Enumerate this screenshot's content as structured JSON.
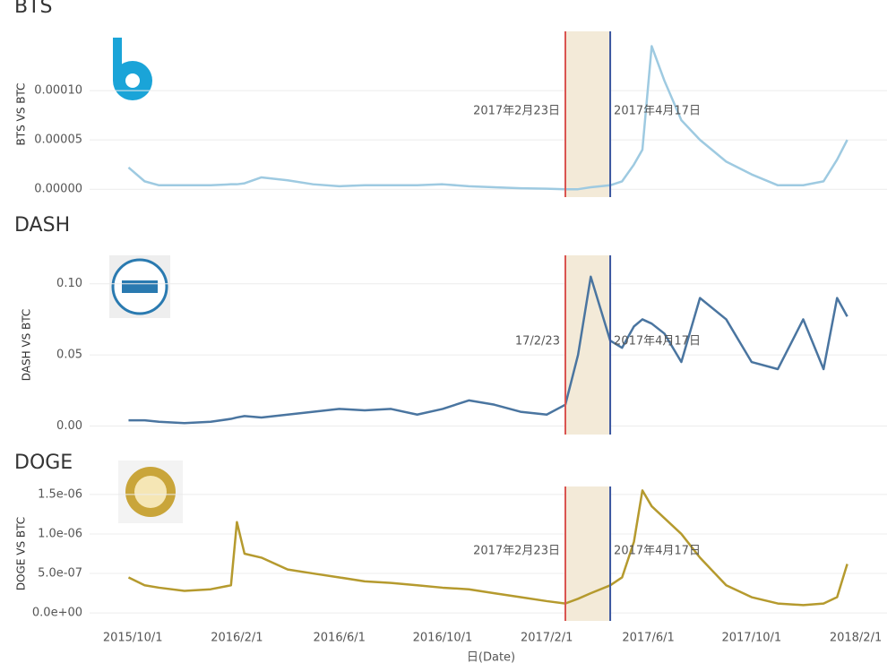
{
  "chart_data": [
    {
      "type": "line",
      "title": "BTS",
      "y_label": "BTS VS BTC",
      "x": [
        "2015/9/26",
        "2015/10/15",
        "2015/11/1",
        "2015/12/1",
        "2016/1/1",
        "2016/1/25",
        "2016/2/1",
        "2016/2/10",
        "2016/3/1",
        "2016/4/1",
        "2016/5/1",
        "2016/6/1",
        "2016/7/1",
        "2016/8/1",
        "2016/9/1",
        "2016/10/1",
        "2016/11/1",
        "2016/12/1",
        "2017/1/1",
        "2017/2/1",
        "2017/2/23",
        "2017/3/10",
        "2017/3/25",
        "2017/4/17",
        "2017/5/1",
        "2017/5/15",
        "2017/5/25",
        "2017/6/5",
        "2017/6/20",
        "2017/7/10",
        "2017/8/1",
        "2017/9/1",
        "2017/10/1",
        "2017/11/1",
        "2017/12/1",
        "2017/12/25",
        "2018/1/10",
        "2018/1/22"
      ],
      "series": [
        {
          "color": "#9ecae1",
          "values": [
            2.2e-05,
            8e-06,
            4e-06,
            4e-06,
            4e-06,
            5e-06,
            5e-06,
            6e-06,
            1.2e-05,
            9e-06,
            5e-06,
            3e-06,
            4e-06,
            4e-06,
            4e-06,
            5e-06,
            3e-06,
            2e-06,
            1e-06,
            5e-07,
            0,
            0,
            2e-06,
            4e-06,
            8e-06,
            2.5e-05,
            4e-05,
            0.000145,
            0.00011,
            7e-05,
            5e-05,
            2.8e-05,
            1.5e-05,
            4e-06,
            4e-06,
            8e-06,
            3e-05,
            5e-05
          ]
        }
      ],
      "xlim": [
        "2015/8/11",
        "2018/3/10"
      ],
      "ylim": [
        -8e-06,
        0.00016
      ],
      "yticks": [
        {
          "value": 0,
          "label": "0.00000"
        },
        {
          "value": 5e-05,
          "label": "0.00005"
        },
        {
          "value": 0.0001,
          "label": "0.00010"
        }
      ],
      "grid": true,
      "annotations": [
        {
          "x": "2017/2/23",
          "label": "2017年2月23日",
          "color": "#d9534f"
        },
        {
          "x": "2017/4/17",
          "label": "2017年4月17日",
          "color": "#3a56a0"
        }
      ],
      "shade_color": "#f3ead8"
    },
    {
      "type": "line",
      "title": "DASH",
      "y_label": "DASH VS BTC",
      "x": [
        "2015/9/26",
        "2015/10/15",
        "2015/11/1",
        "2015/12/1",
        "2016/1/1",
        "2016/1/25",
        "2016/2/1",
        "2016/2/10",
        "2016/3/1",
        "2016/4/1",
        "2016/5/1",
        "2016/6/1",
        "2016/7/1",
        "2016/8/1",
        "2016/9/1",
        "2016/10/1",
        "2016/11/1",
        "2016/12/1",
        "2017/1/1",
        "2017/2/1",
        "2017/2/23",
        "2017/3/10",
        "2017/3/25",
        "2017/4/17",
        "2017/5/1",
        "2017/5/15",
        "2017/5/25",
        "2017/6/5",
        "2017/6/20",
        "2017/7/10",
        "2017/8/1",
        "2017/9/1",
        "2017/10/1",
        "2017/11/1",
        "2017/12/1",
        "2017/12/25",
        "2018/1/10",
        "2018/1/22"
      ],
      "series": [
        {
          "color": "#4a75a0",
          "values": [
            0.004,
            0.004,
            0.003,
            0.002,
            0.003,
            0.005,
            0.006,
            0.007,
            0.006,
            0.008,
            0.01,
            0.012,
            0.011,
            0.012,
            0.008,
            0.012,
            0.018,
            0.015,
            0.01,
            0.008,
            0.015,
            0.05,
            0.105,
            0.06,
            0.055,
            0.07,
            0.075,
            0.072,
            0.065,
            0.045,
            0.09,
            0.075,
            0.045,
            0.04,
            0.075,
            0.04,
            0.09,
            0.077
          ]
        }
      ],
      "xlim": [
        "2015/8/11",
        "2018/3/10"
      ],
      "ylim": [
        -0.006,
        0.12
      ],
      "yticks": [
        {
          "value": 0,
          "label": "0.00"
        },
        {
          "value": 0.05,
          "label": "0.05"
        },
        {
          "value": 0.1,
          "label": "0.10"
        }
      ],
      "grid": true,
      "annotations": [
        {
          "x": "2017/2/23",
          "label": "17/2/23",
          "color": "#d9534f"
        },
        {
          "x": "2017/4/17",
          "label": "2017年4月17日",
          "color": "#3a56a0"
        }
      ],
      "shade_color": "#f3ead8"
    },
    {
      "type": "line",
      "title": "DOGE",
      "y_label": "DOGE VS BTC",
      "x_label": "日(Date)",
      "x": [
        "2015/9/26",
        "2015/10/15",
        "2015/11/1",
        "2015/12/1",
        "2016/1/1",
        "2016/1/25",
        "2016/2/1",
        "2016/2/10",
        "2016/3/1",
        "2016/4/1",
        "2016/5/1",
        "2016/6/1",
        "2016/7/1",
        "2016/8/1",
        "2016/9/1",
        "2016/10/1",
        "2016/11/1",
        "2016/12/1",
        "2017/1/1",
        "2017/2/1",
        "2017/2/23",
        "2017/3/10",
        "2017/3/25",
        "2017/4/17",
        "2017/5/1",
        "2017/5/15",
        "2017/5/25",
        "2017/6/5",
        "2017/6/20",
        "2017/7/10",
        "2017/8/1",
        "2017/9/1",
        "2017/10/1",
        "2017/11/1",
        "2017/12/1",
        "2017/12/25",
        "2018/1/10",
        "2018/1/22"
      ],
      "series": [
        {
          "color": "#b59a2e",
          "values": [
            4.5e-07,
            3.5e-07,
            3.2e-07,
            2.8e-07,
            3e-07,
            3.5e-07,
            1.15e-06,
            7.5e-07,
            7e-07,
            5.5e-07,
            5e-07,
            4.5e-07,
            4e-07,
            3.8e-07,
            3.5e-07,
            3.2e-07,
            3e-07,
            2.5e-07,
            2e-07,
            1.5e-07,
            1.2e-07,
            1.8e-07,
            2.5e-07,
            3.5e-07,
            4.5e-07,
            9e-07,
            1.55e-06,
            1.35e-06,
            1.2e-06,
            1e-06,
            7e-07,
            3.5e-07,
            2e-07,
            1.2e-07,
            1e-07,
            1.2e-07,
            2e-07,
            6.2e-07
          ]
        }
      ],
      "xlim": [
        "2015/8/11",
        "2018/3/10"
      ],
      "xticks": [
        "2015/10/1",
        "2016/2/1",
        "2016/6/1",
        "2016/10/1",
        "2017/2/1",
        "2017/6/1",
        "2017/10/1",
        "2018/2/1"
      ],
      "ylim": [
        -1e-07,
        1.6e-06
      ],
      "yticks": [
        {
          "value": 0,
          "label": "0.0e+00"
        },
        {
          "value": 5e-07,
          "label": "5.0e-07"
        },
        {
          "value": 1e-06,
          "label": "1.0e-06"
        },
        {
          "value": 1.5e-06,
          "label": "1.5e-06"
        }
      ],
      "grid": true,
      "annotations": [
        {
          "x": "2017/2/23",
          "label": "2017年2月23日",
          "color": "#d9534f"
        },
        {
          "x": "2017/4/17",
          "label": "2017年4月17日",
          "color": "#3a56a0"
        }
      ],
      "shade_color": "#f3ead8"
    }
  ]
}
